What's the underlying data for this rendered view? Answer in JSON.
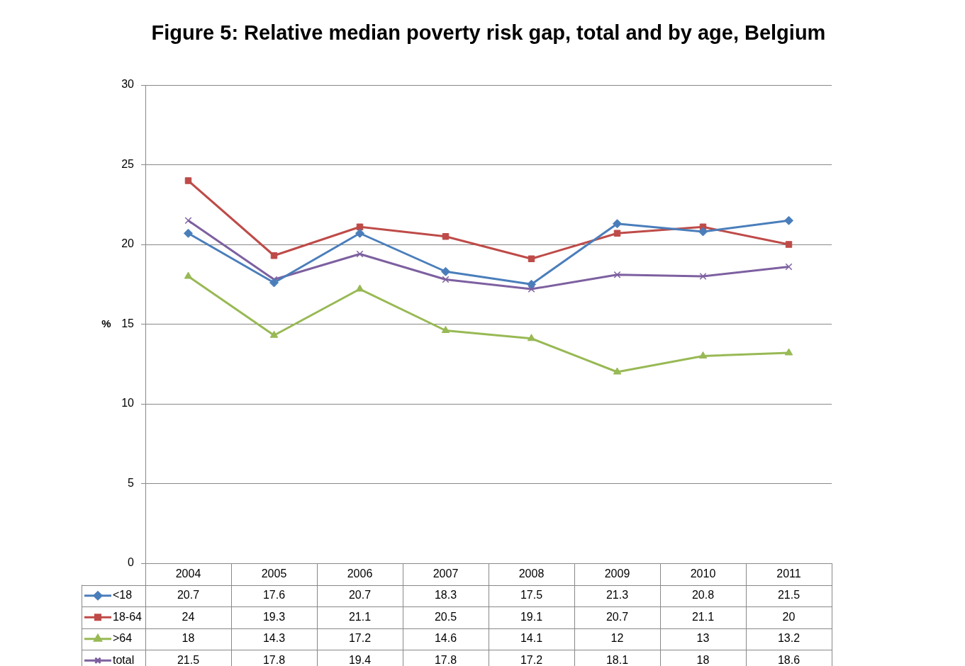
{
  "chart_data": {
    "type": "line",
    "title": "Figure 5: Relative median poverty risk gap, total and by age, Belgium",
    "ylabel": "%",
    "categories": [
      "2004",
      "2005",
      "2006",
      "2007",
      "2008",
      "2009",
      "2010",
      "2011"
    ],
    "series": [
      {
        "name": "<18",
        "color": "#4a7ebb",
        "marker": "diamond",
        "values": [
          20.7,
          17.6,
          20.7,
          18.3,
          17.5,
          21.3,
          20.8,
          21.5
        ]
      },
      {
        "name": "18-64",
        "color": "#be4b48",
        "marker": "square",
        "values": [
          24,
          19.3,
          21.1,
          20.5,
          19.1,
          20.7,
          21.1,
          20
        ]
      },
      {
        "name": ">64",
        "color": "#98b954",
        "marker": "triangle",
        "values": [
          18,
          14.3,
          17.2,
          14.6,
          14.1,
          12,
          13,
          13.2
        ]
      },
      {
        "name": "total",
        "color": "#7d60a0",
        "marker": "cross",
        "values": [
          21.5,
          17.8,
          19.4,
          17.8,
          17.2,
          18.1,
          18,
          18.6
        ]
      }
    ],
    "ylim": [
      0,
      30
    ],
    "yticks": [
      0,
      5,
      10,
      15,
      20,
      25,
      30
    ],
    "grid": "y",
    "legend": "bottom",
    "data_labels": true
  }
}
